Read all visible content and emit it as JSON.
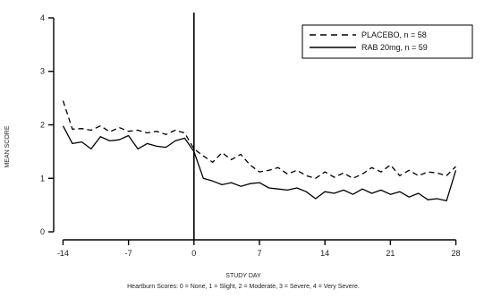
{
  "chart_data": {
    "type": "line",
    "title": "",
    "xlabel": "STUDY DAY",
    "ylabel": "MEAN SCORE",
    "footnote": "Heartburn Scores: 0 = None, 1 = Slight, 2 = Moderate, 3 = Severe, 4 = Very Severe.",
    "xlim": [
      -15,
      29
    ],
    "ylim": [
      -0.15,
      4.1
    ],
    "xticks": [
      -14,
      -7,
      0,
      7,
      14,
      21,
      28
    ],
    "yticks": [
      0,
      1,
      2,
      3,
      4
    ],
    "grid": false,
    "legend_position": "top-right",
    "reference_line_x": 0,
    "series": [
      {
        "name": "PLACEBO, n = 58",
        "style": "dashed",
        "x": [
          -14,
          -13,
          -12,
          -11,
          -10,
          -9,
          -8,
          -7,
          -6,
          -5,
          -4,
          -3,
          -2,
          -1,
          0,
          1,
          2,
          3,
          4,
          5,
          6,
          7,
          8,
          9,
          10,
          11,
          12,
          13,
          14,
          15,
          16,
          17,
          18,
          19,
          20,
          21,
          22,
          23,
          24,
          25,
          26,
          27,
          28
        ],
        "values": [
          2.45,
          1.92,
          1.93,
          1.9,
          1.98,
          1.87,
          1.95,
          1.88,
          1.9,
          1.85,
          1.88,
          1.82,
          1.9,
          1.85,
          1.55,
          1.42,
          1.3,
          1.48,
          1.35,
          1.45,
          1.25,
          1.12,
          1.15,
          1.2,
          1.08,
          1.15,
          1.05,
          1.0,
          1.12,
          1.02,
          1.1,
          1.0,
          1.08,
          1.2,
          1.12,
          1.25,
          1.05,
          1.15,
          1.05,
          1.12,
          1.1,
          1.05,
          1.22
        ]
      },
      {
        "name": "RAB 20mg, n = 59",
        "style": "solid",
        "x": [
          -14,
          -13,
          -12,
          -11,
          -10,
          -9,
          -8,
          -7,
          -6,
          -5,
          -4,
          -3,
          -2,
          -1,
          0,
          1,
          2,
          3,
          4,
          5,
          6,
          7,
          8,
          9,
          10,
          11,
          12,
          13,
          14,
          15,
          16,
          17,
          18,
          19,
          20,
          21,
          22,
          23,
          24,
          25,
          26,
          27,
          28
        ],
        "values": [
          1.98,
          1.65,
          1.68,
          1.55,
          1.78,
          1.7,
          1.72,
          1.8,
          1.55,
          1.65,
          1.6,
          1.58,
          1.7,
          1.75,
          1.5,
          1.0,
          0.95,
          0.88,
          0.92,
          0.85,
          0.9,
          0.92,
          0.82,
          0.8,
          0.78,
          0.82,
          0.75,
          0.62,
          0.75,
          0.72,
          0.78,
          0.7,
          0.8,
          0.72,
          0.78,
          0.7,
          0.75,
          0.65,
          0.72,
          0.6,
          0.62,
          0.58,
          1.15
        ]
      }
    ]
  }
}
